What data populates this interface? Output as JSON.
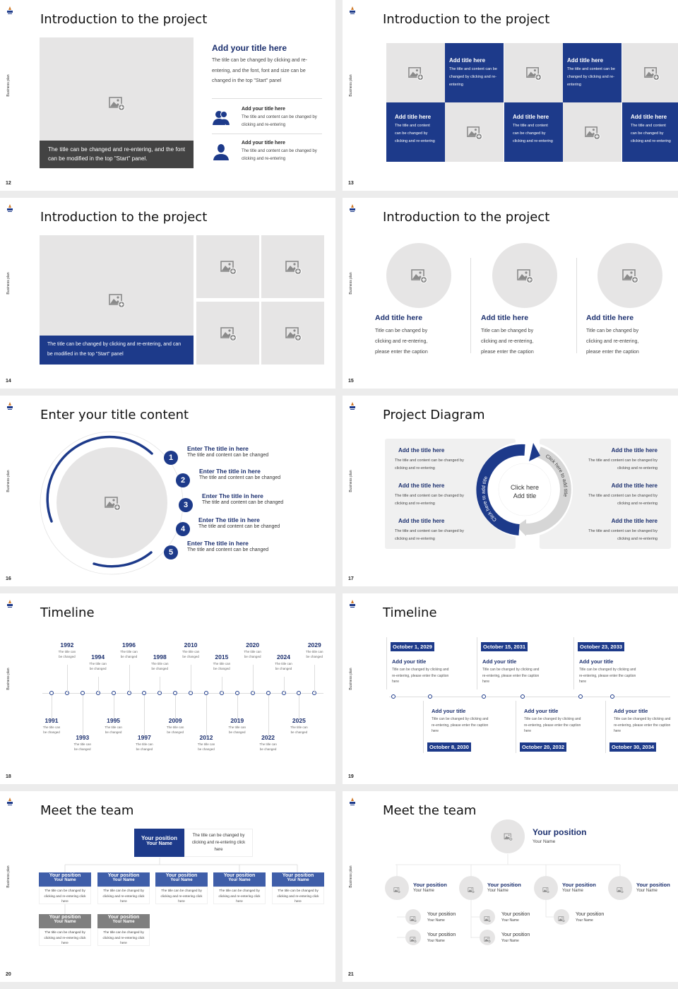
{
  "deck_label": "Business plan",
  "colors": {
    "navy": "#1d3a8a",
    "title_navy": "#1b2f6e",
    "placeholder": "#e6e5e5",
    "dark_caption": "#434343",
    "gray_box": "#7f7f7f",
    "page_bg": "#ececec"
  },
  "slides": [
    {
      "page": "12",
      "title": "Introduction to the project",
      "caption": "The title can be changed and re-entering, and the font can be modified in the top \"Start\" panel.",
      "heading": "Add your title here",
      "body": "The title can be changed by clicking and re-entering, and the font, font and size can be changed in the top \"Start\" panel",
      "items": [
        {
          "icon": "group-icon",
          "title": "Add your title here",
          "text": "The title and content can be changed by clicking and re-entering"
        },
        {
          "icon": "person-icon",
          "title": "Add your title here",
          "text": "The title and content can be changed by clicking and re-entering"
        }
      ]
    },
    {
      "page": "13",
      "title": "Introduction to the project",
      "cells": [
        {
          "title": "Add title here",
          "text": "The title and content can be changed by clicking and re-entering"
        },
        {
          "title": "Add title here",
          "text": "The title and content can be changed by clicking and re-entering"
        },
        {
          "title": "Add title here",
          "text": "The title and content can be changed by clicking and re-entering"
        },
        {
          "title": "Add title here",
          "text": "The title and content can be changed by clicking and re-entering"
        },
        {
          "title": "Add title here",
          "text": "The title and content can be changed by clicking and re-entering"
        }
      ]
    },
    {
      "page": "14",
      "title": "Introduction to the project",
      "caption": "The title can be changed by clicking and re-entering, and can be modified in the top \"Start\" panel"
    },
    {
      "page": "15",
      "title": "Introduction to the project",
      "columns": [
        {
          "title": "Add title here",
          "text": "Title can be changed by clicking and re-entering, please enter the caption"
        },
        {
          "title": "Add title here",
          "text": "Title can be changed by clicking and re-entering, please enter the caption"
        },
        {
          "title": "Add title here",
          "text": "Title can be changed by clicking and re-entering, please enter the caption"
        }
      ]
    },
    {
      "page": "16",
      "title": "Enter your title content",
      "items": [
        {
          "num": "1",
          "title": "Enter The title in here",
          "text": "The title and content can be changed"
        },
        {
          "num": "2",
          "title": "Enter The title in here",
          "text": "The title and content can be changed"
        },
        {
          "num": "3",
          "title": "Enter The title in here",
          "text": "The title and content can be changed"
        },
        {
          "num": "4",
          "title": "Enter The title in here",
          "text": "The title and content can be changed"
        },
        {
          "num": "5",
          "title": "Enter The title in here",
          "text": "The title and content can be changed"
        }
      ]
    },
    {
      "page": "17",
      "title": "Project Diagram",
      "center_line1": "Click here",
      "center_line2": "Add title",
      "arc_left": "Click here to add title",
      "arc_right": "Click here to add title",
      "left_items": [
        {
          "title": "Add the title here",
          "text": "The title and content can be changed by clicking and re-entering"
        },
        {
          "title": "Add the title here",
          "text": "The title and content can be changed by clicking and re-entering"
        },
        {
          "title": "Add the title here",
          "text": "The title and content can be changed by clicking and re-entering"
        }
      ],
      "right_items": [
        {
          "title": "Add the title here",
          "text": "The title and content can be changed by clicking and re-entering"
        },
        {
          "title": "Add the title here",
          "text": "The title and content can be changed by clicking and re-entering"
        },
        {
          "title": "Add the title here",
          "text": "The title and content can be changed by clicking and re-entering"
        }
      ]
    },
    {
      "page": "18",
      "title": "Timeline",
      "events": [
        {
          "year": "1991",
          "text": "The title can be changed"
        },
        {
          "year": "1992",
          "text": "The title can be changed"
        },
        {
          "year": "1993",
          "text": "The title can be changed"
        },
        {
          "year": "1994",
          "text": "The title can be changed"
        },
        {
          "year": "1995",
          "text": "The title can be changed"
        },
        {
          "year": "1996",
          "text": "The title can be changed"
        },
        {
          "year": "1997",
          "text": "The title can be changed"
        },
        {
          "year": "1998",
          "text": "The title can be changed"
        },
        {
          "year": "2009",
          "text": "The title can be changed"
        },
        {
          "year": "2010",
          "text": "The title can be changed"
        },
        {
          "year": "2012",
          "text": "The title can be changed"
        },
        {
          "year": "2015",
          "text": "The title can be changed"
        },
        {
          "year": "2019",
          "text": "The title can be changed"
        },
        {
          "year": "2020",
          "text": "The title can be changed"
        },
        {
          "year": "2022",
          "text": "The title can be changed"
        },
        {
          "year": "2024",
          "text": "The title can be changed"
        },
        {
          "year": "2025",
          "text": "The title can be changed"
        },
        {
          "year": "2029",
          "text": "The title can be changed"
        }
      ]
    },
    {
      "page": "19",
      "title": "Timeline",
      "events": [
        {
          "date": "October 1, 2029",
          "title": "Add your title",
          "text": "Title can be changed by clicking and re-entering, please enter the caption here"
        },
        {
          "date": "October 8, 2030",
          "title": "Add your title",
          "text": "Title can be changed by clicking and re-entering, please enter the caption here"
        },
        {
          "date": "October 15, 2031",
          "title": "Add your title",
          "text": "Title can be changed by clicking and re-entering, please enter the caption here"
        },
        {
          "date": "October 20, 2032",
          "title": "Add your title",
          "text": "Title can be changed by clicking and re-entering, please enter the caption here"
        },
        {
          "date": "October 23, 2033",
          "title": "Add your title",
          "text": "Title can be changed by clicking and re-entering, please enter the caption here"
        },
        {
          "date": "October 30, 2034",
          "title": "Add your title",
          "text": "Title can be changed by clicking and re-entering, please enter the caption here"
        }
      ]
    },
    {
      "page": "20",
      "title": "Meet the team",
      "lead": {
        "position": "Your position",
        "name": "Your Name",
        "text": "The title can be changed by clicking and re-entering click here"
      },
      "members": [
        {
          "position": "Your position",
          "name": "Your Name",
          "text": "The title can be changed by clicking and re-entering click here"
        },
        {
          "position": "Your position",
          "name": "Your Name",
          "text": "The title can be changed by clicking and re-entering click here"
        },
        {
          "position": "Your position",
          "name": "Your Name",
          "text": "The title can be changed by clicking and re-entering click here"
        },
        {
          "position": "Your position",
          "name": "Your Name",
          "text": "The title can be changed by clicking and re-entering click here"
        },
        {
          "position": "Your position",
          "name": "Your Name",
          "text": "The title can be changed by clicking and re-entering click here"
        }
      ],
      "sub_members": [
        {
          "position": "Your position",
          "name": "Your Name",
          "text": "The title can be changed by clicking and re-entering click here"
        },
        {
          "position": "Your position",
          "name": "Your Name",
          "text": "The title can be changed by clicking and re-entering click here"
        }
      ]
    },
    {
      "page": "21",
      "title": "Meet the team",
      "lead": {
        "position": "Your position",
        "name": "Your Name"
      },
      "members": [
        {
          "position": "Your position",
          "name": "Your Name"
        },
        {
          "position": "Your position",
          "name": "Your Name"
        },
        {
          "position": "Your position",
          "name": "Your Name"
        },
        {
          "position": "Your position",
          "name": "Your Name"
        }
      ],
      "sub_members": [
        {
          "position": "Your position",
          "name": "Your Name"
        },
        {
          "position": "Your position",
          "name": "Your Name"
        },
        {
          "position": "Your position",
          "name": "Your Name"
        },
        {
          "position": "Your position",
          "name": "Your Name"
        },
        {
          "position": "Your position",
          "name": "Your Name"
        }
      ]
    }
  ]
}
